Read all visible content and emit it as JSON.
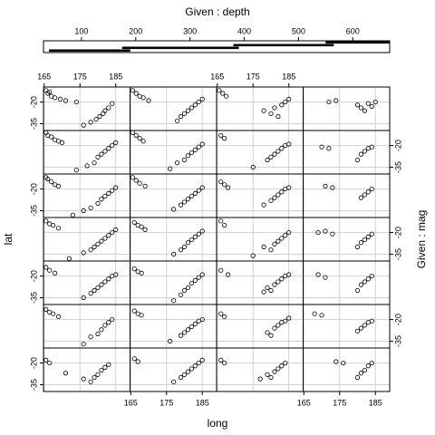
{
  "chart_data": {
    "type": "coplot",
    "x_label": "long",
    "y_label": "lat",
    "given_top": {
      "label": "Given : depth",
      "xlim": [
        30,
        668
      ],
      "xticks": [
        100,
        200,
        300,
        400,
        500,
        600
      ],
      "intervals": [
        [
          40,
          190
        ],
        [
          175,
          390
        ],
        [
          380,
          565
        ],
        [
          550,
          680
        ]
      ]
    },
    "given_right": {
      "label": "Given : mag"
    },
    "xlim": [
      164.8,
      189
    ],
    "xticks": [
      165,
      175,
      185
    ],
    "ylim": [
      -39.7,
      -9.6
    ],
    "yticks": [
      -20,
      -35
    ],
    "grid": true,
    "point_color": "#000000",
    "panels": [
      [
        {
          "x": [
            165.5,
            166,
            166.5,
            167,
            168,
            169.5,
            171,
            174,
            176,
            178,
            179.5,
            180.5,
            181.5,
            182,
            183,
            184
          ],
          "y": [
            -12,
            -14,
            -13,
            -16,
            -17,
            -18,
            -19,
            -20,
            -36,
            -34,
            -32,
            -30,
            -28,
            -26,
            -24,
            -21
          ]
        },
        {
          "x": [
            165.5,
            166.5,
            167.5,
            168.5,
            170,
            178,
            179,
            180,
            181,
            182,
            183,
            184,
            185
          ],
          "y": [
            -12,
            -14,
            -16,
            -17,
            -19,
            -33,
            -30,
            -28,
            -26,
            -24,
            -22,
            -20,
            -18
          ]
        },
        {
          "x": [
            165.5,
            166.5,
            167.5,
            178,
            180,
            181,
            182,
            183,
            184,
            185
          ],
          "y": [
            -12,
            -14,
            -16,
            -26,
            -28,
            -24,
            -30,
            -22,
            -20,
            -18
          ]
        },
        {
          "x": [
            172,
            174,
            180,
            181,
            182,
            183,
            184,
            185
          ],
          "y": [
            -20,
            -19,
            -22,
            -24,
            -26,
            -21,
            -23,
            -20
          ]
        }
      ],
      [
        {
          "x": [
            165.5,
            166,
            167,
            168,
            169,
            170,
            174,
            177,
            179,
            180,
            181,
            182,
            183,
            184,
            185
          ],
          "y": [
            -11,
            -13,
            -14,
            -16,
            -17,
            -18,
            -37,
            -34,
            -32,
            -28,
            -26,
            -24,
            -22,
            -20,
            -18
          ]
        },
        {
          "x": [
            165.5,
            166.5,
            167.5,
            168.5,
            176,
            178,
            180,
            181,
            182,
            183,
            184,
            185
          ],
          "y": [
            -11,
            -13,
            -15,
            -17,
            -36,
            -32,
            -30,
            -27,
            -25,
            -23,
            -21,
            -19
          ]
        },
        {
          "x": [
            166,
            167,
            175,
            179,
            180,
            181,
            182,
            183,
            184,
            185
          ],
          "y": [
            -13,
            -15,
            -35,
            -30,
            -28,
            -26,
            -24,
            -22,
            -20,
            -19
          ]
        },
        {
          "x": [
            170,
            172,
            180,
            181,
            182,
            183,
            184
          ],
          "y": [
            -21,
            -22,
            -30,
            -26,
            -24,
            -22,
            -21
          ]
        }
      ],
      [
        {
          "x": [
            165.5,
            166,
            167,
            168,
            169,
            173,
            176,
            178,
            180,
            181,
            182,
            183,
            184,
            185
          ],
          "y": [
            -12,
            -13,
            -15,
            -17,
            -18,
            -38,
            -35,
            -33,
            -30,
            -27,
            -25,
            -23,
            -21,
            -19
          ]
        },
        {
          "x": [
            165.5,
            166.5,
            167.5,
            169,
            177,
            179,
            180,
            181,
            182,
            183,
            184,
            185
          ],
          "y": [
            -12,
            -14,
            -16,
            -18,
            -34,
            -31,
            -29,
            -27,
            -25,
            -23,
            -21,
            -19
          ]
        },
        {
          "x": [
            166,
            167,
            168,
            178,
            180,
            181,
            182,
            183,
            184,
            185
          ],
          "y": [
            -15,
            -17,
            -19,
            -31,
            -28,
            -26,
            -24,
            -22,
            -20,
            -19
          ]
        },
        {
          "x": [
            171,
            173,
            181,
            182,
            183,
            184
          ],
          "y": [
            -18,
            -19,
            -26,
            -24,
            -22,
            -20
          ]
        }
      ],
      [
        {
          "x": [
            165.5,
            166.5,
            167.5,
            169,
            172,
            176,
            178,
            179,
            180,
            181,
            182,
            183,
            184,
            185
          ],
          "y": [
            -12,
            -14,
            -15,
            -17,
            -38,
            -34,
            -32,
            -30,
            -28,
            -26,
            -24,
            -22,
            -20,
            -18
          ]
        },
        {
          "x": [
            166,
            167,
            168,
            169,
            177,
            179,
            180,
            181,
            182,
            183,
            184,
            185
          ],
          "y": [
            -13,
            -15,
            -16,
            -18,
            -35,
            -32,
            -30,
            -27,
            -25,
            -23,
            -21,
            -19
          ]
        },
        {
          "x": [
            166,
            167,
            175,
            178,
            180,
            181,
            182,
            183,
            184,
            185
          ],
          "y": [
            -12,
            -15,
            -36,
            -30,
            -32,
            -28,
            -26,
            -24,
            -22,
            -20
          ]
        },
        {
          "x": [
            169,
            171,
            173,
            180,
            181,
            182,
            183,
            184
          ],
          "y": [
            -20,
            -19,
            -21,
            -30,
            -27,
            -25,
            -23,
            -21
          ]
        }
      ],
      [
        {
          "x": [
            165.5,
            166.5,
            168,
            176,
            178,
            179,
            180,
            181,
            182,
            183,
            184,
            185
          ],
          "y": [
            -14,
            -16,
            -18,
            -35,
            -32,
            -30,
            -28,
            -26,
            -24,
            -22,
            -20,
            -19
          ]
        },
        {
          "x": [
            166,
            167,
            168,
            177,
            179,
            180,
            181,
            182,
            183,
            184,
            185
          ],
          "y": [
            -15,
            -17,
            -18,
            -37,
            -33,
            -30,
            -28,
            -25,
            -23,
            -21,
            -19
          ]
        },
        {
          "x": [
            166,
            168,
            178,
            179,
            180,
            181,
            182,
            183,
            184,
            185
          ],
          "y": [
            -16,
            -19,
            -31,
            -28,
            -30,
            -26,
            -24,
            -22,
            -20,
            -19
          ]
        },
        {
          "x": [
            169,
            171,
            180,
            181,
            182,
            183,
            184
          ],
          "y": [
            -19,
            -21,
            -30,
            -26,
            -24,
            -22,
            -20
          ]
        }
      ],
      [
        {
          "x": [
            165.5,
            166.5,
            167.5,
            169,
            176,
            178,
            180,
            181,
            182,
            183,
            184
          ],
          "y": [
            -13,
            -15,
            -16,
            -18,
            -37,
            -32,
            -30,
            -27,
            -24,
            -22,
            -20
          ]
        },
        {
          "x": [
            166,
            167,
            168,
            176,
            179,
            180,
            181,
            182,
            183,
            184,
            185
          ],
          "y": [
            -14,
            -16,
            -17,
            -35,
            -31,
            -29,
            -27,
            -25,
            -23,
            -21,
            -20
          ]
        },
        {
          "x": [
            166,
            167,
            179,
            180,
            181,
            182,
            183,
            184,
            185
          ],
          "y": [
            -16,
            -18,
            -29,
            -31,
            -26,
            -24,
            -22,
            -21,
            -19
          ]
        },
        {
          "x": [
            168,
            170,
            180,
            181,
            182,
            183,
            184
          ],
          "y": [
            -16,
            -17,
            -28,
            -26,
            -24,
            -22,
            -21
          ]
        }
      ],
      [
        {
          "x": [
            165.5,
            166.5,
            171,
            176,
            178,
            179,
            180,
            181,
            182,
            183
          ],
          "y": [
            -18,
            -20,
            -27,
            -31,
            -33,
            -30,
            -28,
            -25,
            -23,
            -21
          ]
        },
        {
          "x": [
            166,
            167,
            177,
            179,
            180,
            181,
            182,
            183,
            184,
            185
          ],
          "y": [
            -17,
            -19,
            -33,
            -30,
            -28,
            -26,
            -24,
            -22,
            -20,
            -18
          ]
        },
        {
          "x": [
            166,
            167,
            177,
            179,
            180,
            181,
            182,
            183,
            184
          ],
          "y": [
            -18,
            -20,
            -31,
            -28,
            -30,
            -26,
            -24,
            -22,
            -20
          ]
        },
        {
          "x": [
            174,
            176,
            180,
            181,
            182,
            183,
            184
          ],
          "y": [
            -19,
            -20,
            -30,
            -27,
            -25,
            -22,
            -20
          ]
        }
      ]
    ]
  }
}
